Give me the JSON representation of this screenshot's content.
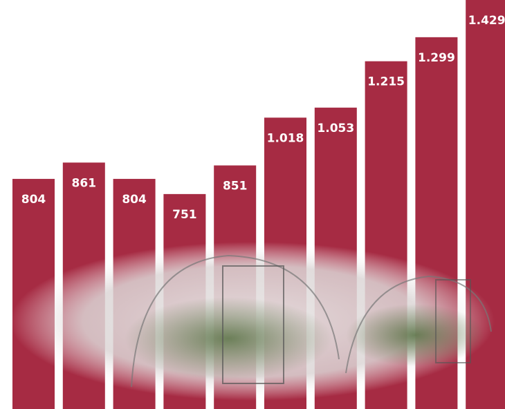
{
  "chart_data": {
    "type": "bar",
    "categories": [
      null,
      null,
      null,
      null,
      null,
      null,
      null,
      null,
      null,
      null
    ],
    "values": [
      804,
      861,
      804,
      751,
      851,
      1018,
      1053,
      1215,
      1299,
      1429
    ],
    "value_labels": [
      "804",
      "861",
      "804",
      "751",
      "851",
      "1.018",
      "1.053",
      "1.215",
      "1.299",
      "1.429"
    ],
    "color": "#a62b43"
  }
}
